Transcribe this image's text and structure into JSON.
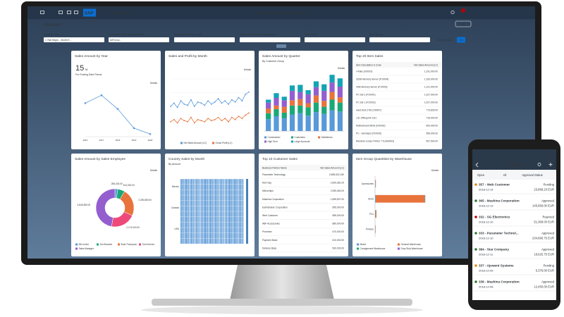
{
  "header": {
    "logo": "SAP",
    "logo_sub": "Business One",
    "user": "SBODEMOUS",
    "title": "Sales Analysis by Rows Overview",
    "badge": "2"
  },
  "toolbar": {
    "variant": "Standard",
    "edit": "Edit"
  },
  "filters": {
    "fields": [
      "Posting Date",
      "Document Type Display Name",
      "Business Partner Code",
      "Business Partner Group Name",
      "Item Code",
      "Item Group"
    ],
    "values": [
      "1 Year Begin... Month E...",
      "A/R Invoi..."
    ],
    "adapt": "Adapt Filters",
    "go": "Go"
  },
  "cards": {
    "year": {
      "title": "Sales Amount by Year",
      "kpi": "15",
      "unit": "M",
      "subtitle": "For Posting Date Period",
      "details": "Details",
      "chart": {
        "type": "line",
        "color": "#5899da",
        "categories": [
          "2016",
          "2017",
          "2018",
          "2019",
          "2020"
        ],
        "values": [
          10.2,
          12.6,
          8.4,
          2.6,
          0.8
        ],
        "ylim": [
          0,
          15
        ]
      }
    },
    "month": {
      "title": "Sales and Profit by Month",
      "details": "Details",
      "chart": {
        "type": "line",
        "ylim": [
          0,
          5
        ],
        "series": [
          {
            "name": "Net Sales Amount (LC)",
            "color": "#5899da",
            "values": [
              2.5,
              2.8,
              2.4,
              3.0,
              2.7,
              2.6,
              3.1,
              2.5,
              2.9,
              2.8,
              2.6,
              3.0,
              2.7,
              2.9,
              3.2,
              2.8,
              3.0,
              2.7,
              3.1,
              2.9,
              3.3,
              3.0,
              3.6,
              3.8
            ]
          },
          {
            "name": "Gross Profit (LC)",
            "color": "#e8743b",
            "values": [
              1.1,
              1.3,
              1.0,
              1.4,
              1.2,
              1.1,
              1.5,
              1.0,
              1.3,
              1.2,
              1.1,
              1.4,
              1.2,
              1.3,
              1.5,
              1.2,
              1.4,
              1.1,
              1.5,
              1.3,
              1.6,
              1.4,
              1.7,
              1.9
            ]
          }
        ]
      }
    },
    "quarter": {
      "title": "Sales Amount by Quarter",
      "subtitle": "By Customer Group",
      "details": "Details",
      "chart": {
        "type": "bar",
        "stacked": true,
        "ylim": [
          0,
          10
        ],
        "series": [
          {
            "name": "Construction",
            "color": "#5899da",
            "values": [
              2,
              2.5,
              2.2,
              2.8,
              3,
              2.6,
              3.2,
              2.9,
              3.5,
              3.3
            ]
          },
          {
            "name": "Customers",
            "color": "#19a979",
            "values": [
              1,
              1.2,
              0.9,
              1.5,
              1.3,
              1.4,
              1.6,
              1.2,
              1.8,
              1.5
            ]
          },
          {
            "name": "Distributors",
            "color": "#e8743b",
            "values": [
              0.8,
              0.6,
              1,
              0.9,
              1.1,
              0.7,
              1.2,
              1,
              1.3,
              0.9
            ]
          },
          {
            "name": "High Tech",
            "color": "#945ecf",
            "values": [
              1,
              1.3,
              1.1,
              1.6,
              1.2,
              1.5,
              1.4,
              1.7,
              1.6,
              1.8
            ]
          },
          {
            "name": "Large Accounts",
            "color": "#13a4b4",
            "values": [
              0.5,
              0.8,
              0.6,
              0.9,
              1.2,
              0.7,
              1,
              1.1,
              1.3,
              1.4
            ]
          }
        ]
      }
    },
    "items": {
      "title": "Top 20 Item Sales",
      "headers": [
        "Item Description & Code",
        "Net Sales Amount (LC)"
      ],
      "rows": [
        [
          "i-Video (I00010)",
          "1,191,000.00"
        ],
        [
          "32GB Memory Server (P10004)",
          "1,163,000.00"
        ],
        [
          "4GB Memory Server (P10003)",
          "1,121,000.00"
        ],
        [
          "PC Set 2 (P10001)",
          "1,027,000.00"
        ],
        [
          "PC Set 1 (P10002)",
          "1,027,000.00"
        ],
        [
          "Hard Disk 2TB (C00007)",
          "773,825.00"
        ],
        [
          "J.B. Officeprint 1111",
          "716,000.00"
        ],
        [
          "Motherboard MGA (C00002)",
          "600,000.00"
        ],
        [
          "PC - Set Basic (P10005)",
          "596,000.00"
        ],
        [
          "Rainbow Colour Printer 7.5 (A00003)",
          "597,500.00"
        ]
      ]
    },
    "employee": {
      "title": "Sales Amount by Sales Employee",
      "details": "Details",
      "chart": {
        "type": "pie",
        "donut": true,
        "categories": [
          "Bill Levine",
          "Jim Boswick",
          "Brad Thompson",
          "Tom Keeves",
          "Sales Manager"
        ],
        "values": [
          256443,
          612000,
          2390850,
          2174000,
          4845389
        ],
        "value_labels": [
          "256,443.00",
          "612,000.00",
          "2,390,850.00",
          "2,174,000.00",
          "4,845,389.00"
        ],
        "colors": [
          "#5899da",
          "#19a979",
          "#e8743b",
          "#ed4a7b",
          "#945ecf"
        ]
      }
    },
    "country": {
      "title": "Country Sales by Month",
      "subtitle": "By Amount",
      "row_labels": [
        "Mexico",
        "Canada",
        "USA"
      ]
    },
    "customers": {
      "title": "Top 10 Customer Sales",
      "headers": [
        "Business Partner Name",
        "Net Sales Amount (LC)"
      ],
      "rows": [
        [
          "Parameter Technology",
          "2,898,532.150"
        ],
        [
          "Mori Say",
          "2,509,381.00"
        ],
        [
          "Microchips",
          "2,395,360.00"
        ],
        [
          "Mashina Corporation",
          "1,895,837.00"
        ],
        [
          "Earthshaker Corporation",
          "895,000.00"
        ],
        [
          "Web Customer",
          "898,000.00"
        ],
        [
          "ABF Accessories",
          "880,000.00"
        ],
        [
          "Proeview",
          "670,000.00"
        ],
        [
          "Payment Base",
          "610,000.00"
        ],
        [
          "Delivery Base",
          "500,000.00"
        ]
      ]
    },
    "warehouse": {
      "title": "Item Group Quantities by Warehouse",
      "details": "Details",
      "chart": {
        "type": "hbar",
        "stacked": true,
        "categories": [
          "Accessories",
          "Items",
          "PCs",
          "Printers"
        ],
        "xlim": [
          0,
          600
        ],
        "series": [
          {
            "name": "Mixed",
            "color": "#5899da",
            "values": [
              2,
              6,
              3,
              1
            ]
          },
          {
            "name": "General Warehouse",
            "color": "#e8743b",
            "values": [
              4,
              480,
              8,
              3
            ]
          },
          {
            "name": "Consignment Warehouse",
            "color": "#19a979",
            "values": [
              1,
              3,
              2,
              1
            ]
          },
          {
            "name": "Drop Ship Warehouse",
            "color": "#945ecf",
            "values": [
              1,
              2,
              1,
              1
            ]
          }
        ]
      }
    }
  },
  "phone": {
    "title": "Quotations",
    "tabs": [
      "Open",
      "All",
      "Approval Status"
    ],
    "quotes": [
      {
        "name": "357 - Web Customer",
        "status": "Pending",
        "date": "2018-12-14",
        "amount": "23,868.23 EUR",
        "color": "#e78c07"
      },
      {
        "name": "365 - Mashina Corporation",
        "status": "Approved",
        "date": "2018-12-13",
        "amount": "145,856.00 EUR",
        "color": "#2b7d2b"
      },
      {
        "name": "332 - SG Electronics",
        "status": "Rejected",
        "date": "2018-12-10",
        "amount": "51,368.00 EUR",
        "color": "#bb0000"
      },
      {
        "name": "333 - Parameter Technol...",
        "status": "Approved",
        "date": "2018-12-10",
        "amount": "234,896.75 EUR",
        "color": "#2b7d2b"
      },
      {
        "name": "384 - Star Company",
        "status": "Approved",
        "date": "2018-12-11",
        "amount": "18,625.75 EUR",
        "color": "#2b7d2b"
      },
      {
        "name": "337 - Ajuwent Systems",
        "status": "Pending",
        "date": "2018-12-09",
        "amount": "5,376.00 EUR",
        "color": "#e78c07"
      },
      {
        "name": "338 - Mashina Corporation",
        "status": "Approved",
        "date": "2018-12-08",
        "amount": "12,450.00 EUR",
        "color": "#2b7d2b"
      }
    ]
  }
}
